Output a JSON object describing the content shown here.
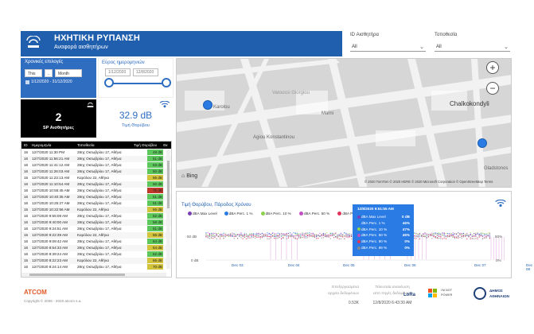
{
  "header": {
    "title": "ΗΧΗΤΙΚΗ ΡΥΠΑΝΣΗ",
    "subtitle": "Αναφορά αισθητήρων",
    "sensor_filter_label": "ID Αισθητήρα",
    "sensor_filter_value": "All",
    "location_filter_label": "Τοποθεσία",
    "location_filter_value": "All"
  },
  "time_filter": {
    "label": "Χρονικές επιλογές",
    "sel1": "This",
    "sel2": "..",
    "sel3": "Month",
    "range_text": "1/12/2020 - 31/12/2020"
  },
  "date_range": {
    "label": "Εύρος ημερομηνιών",
    "start": "1/12/2020",
    "end": "12/8/2020"
  },
  "kpi": {
    "sensors_value": "2",
    "sensors_label": "SP Αισθητήρες",
    "noise_value": "32.9 dB",
    "noise_label": "Τιμή Θορύβου"
  },
  "table": {
    "headers": [
      "ID",
      "Ημερομηνία",
      "Τοποθεσία",
      "Τιμή Θορύβου",
      "Θε"
    ],
    "rows": [
      {
        "id": "16",
        "date": "12/7/2020 11:30 PM",
        "loc": "28ης Οκτωβρίου 17, Αθήνα",
        "val": "48 dB",
        "color": "#5cc85c"
      },
      {
        "id": "16",
        "date": "12/7/2020 11:56:21 AM",
        "loc": "28ης Οκτωβρίου 17, Αθήνα",
        "val": "51 dB",
        "color": "#5cc85c"
      },
      {
        "id": "16",
        "date": "12/7/2020 11:41:12 AM",
        "loc": "28ης Οκτωβρίου 17, Αθήνα",
        "val": "53 dB",
        "color": "#5cc85c"
      },
      {
        "id": "16",
        "date": "12/7/2020 11:26:03 AM",
        "loc": "28ης Οκτωβρίου 17, Αθήνα",
        "val": "50 dB",
        "color": "#5cc85c"
      },
      {
        "id": "15",
        "date": "12/7/2020 11:23:13 AM",
        "loc": "Καρόλου 22, Αθήνα",
        "val": "66 dB",
        "color": "#d2c33a"
      },
      {
        "id": "16",
        "date": "12/7/2020 11:10:54 AM",
        "loc": "28ης Οκτωβρίου 17, Αθήνα",
        "val": "50 dB",
        "color": "#5cc85c"
      },
      {
        "id": "16",
        "date": "12/7/2020 10:55:45 AM",
        "loc": "28ης Οκτωβρίου 17, Αθήνα",
        "val": "75 dB",
        "color": "#c0392b"
      },
      {
        "id": "16",
        "date": "12/7/2020 10:40:35 AM",
        "loc": "28ης Οκτωβρίου 17, Αθήνα",
        "val": "61 dB",
        "color": "#5cc85c"
      },
      {
        "id": "16",
        "date": "12/7/2020 10:25:27 AM",
        "loc": "28ης Οκτωβρίου 17, Αθήνα",
        "val": "51 dB",
        "color": "#5cc85c"
      },
      {
        "id": "15",
        "date": "12/7/2020 10:22:56 AM",
        "loc": "Καρόλου 22, Αθήνα",
        "val": "66 dB",
        "color": "#d2c33a"
      },
      {
        "id": "16",
        "date": "12/7/2020 9:55:09 AM",
        "loc": "28ης Οκτωβρίου 17, Αθήνα",
        "val": "52 dB",
        "color": "#5cc85c"
      },
      {
        "id": "16",
        "date": "12/7/2020 9:40:00 AM",
        "loc": "28ης Οκτωβρίου 17, Αθήνα",
        "val": "58 dB",
        "color": "#5cc85c"
      },
      {
        "id": "16",
        "date": "12/7/2020 9:24:51 AM",
        "loc": "28ης Οκτωβρίου 17, Αθήνα",
        "val": "51 dB",
        "color": "#5cc85c"
      },
      {
        "id": "15",
        "date": "12/7/2020 9:22:39 AM",
        "loc": "Καρόλου 22, Αθήνα",
        "val": "66 dB",
        "color": "#d2c33a"
      },
      {
        "id": "16",
        "date": "12/7/2020 9:09:42 AM",
        "loc": "28ης Οκτωβρίου 17, Αθήνα",
        "val": "64 dB",
        "color": "#5cc85c"
      },
      {
        "id": "16",
        "date": "12/7/2020 8:54:33 AM",
        "loc": "28ης Οκτωβρίου 17, Αθήνα",
        "val": "64 dB",
        "color": "#d2c33a"
      },
      {
        "id": "16",
        "date": "12/7/2020 8:39:24 AM",
        "loc": "28ης Οκτωβρίου 17, Αθήνα",
        "val": "62 dB",
        "color": "#5cc85c"
      },
      {
        "id": "15",
        "date": "12/7/2020 8:22:23 AM",
        "loc": "Καρόλου 22, Αθήνα",
        "val": "66 dB",
        "color": "#d2c33a"
      },
      {
        "id": "16",
        "date": "12/7/2020 8:24:14 AM",
        "loc": "28ης Οκτωβρίου 17, Αθήνα",
        "val": "70 dB",
        "color": "#d2c33a"
      }
    ]
  },
  "map": {
    "streets": [
      "Karolou",
      "Vatoussi Giorgiou",
      "Chalkokondyli",
      "Agiou Konstantinou",
      "Marni",
      "Gladstonos"
    ],
    "attribution": "© 2020 TomTom © 2020 HERE © 2020 Microsoft Corporation © OpenStreetMap Terms",
    "brand": "Bing",
    "zoom_in": "+",
    "zoom_out": "−"
  },
  "chart": {
    "title": "Τιμή Θορύβου, Πάροδος Χρόνου",
    "legend": [
      {
        "name": "dBA Max Level",
        "color": "#7b3fb5"
      },
      {
        "name": "dBA Perc. 1 %",
        "color": "#2a7be4"
      },
      {
        "name": "dBA Perc. 10 %",
        "color": "#8fd14f"
      },
      {
        "name": "dBA Perc. 50 %",
        "color": "#c24fc2"
      },
      {
        "name": "dBA Perc. 90 %",
        "color": "#e0345a"
      },
      {
        "name": "dB...",
        "color": "#888888"
      }
    ],
    "y_left": [
      "50 dB",
      "0 dB"
    ],
    "y_right": [
      "50%",
      "0%"
    ],
    "x_ticks": [
      "Dec 03",
      "Dec 04",
      "Dec 05",
      "Dec 06",
      "Dec 07",
      "Dec 08"
    ],
    "tooltip": {
      "title": "12/8/2020 9:51:55 AM",
      "rows": [
        {
          "k": "dBA Max Level",
          "v": "0 dB",
          "color": "#7b3fb5"
        },
        {
          "k": "dBA Perc. 1 %",
          "v": "46%",
          "color": "#2a7be4"
        },
        {
          "k": "dBA Perc. 10 %",
          "v": "47%",
          "color": "#8fd14f"
        },
        {
          "k": "dBA Perc. 50 %",
          "v": "46%",
          "color": "#c24fc2"
        },
        {
          "k": "dBA Perc. 90 %",
          "v": "0%",
          "color": "#e0345a"
        },
        {
          "k": "dBA Perc. 99 %",
          "v": "0%",
          "color": "#888888"
        }
      ]
    }
  },
  "chart_data": {
    "type": "scatter",
    "x_ticks": [
      "Dec 03",
      "Dec 04",
      "Dec 05",
      "Dec 06",
      "Dec 07",
      "Dec 08"
    ],
    "y_left_ticks": [
      "50 dB",
      "0 dB"
    ],
    "y_right_ticks": [
      "50%",
      "0%"
    ],
    "series": [
      {
        "name": "dBA Max Level",
        "values": [
          50,
          50,
          50,
          50,
          50,
          0
        ]
      },
      {
        "name": "dBA Perc. 1 %",
        "values": [
          46,
          46,
          46,
          46,
          46,
          46
        ]
      },
      {
        "name": "dBA Perc. 10 %",
        "values": [
          47,
          47,
          47,
          47,
          47,
          47
        ]
      },
      {
        "name": "dBA Perc. 50 %",
        "values": [
          46,
          46,
          46,
          46,
          46,
          46
        ]
      },
      {
        "name": "dBA Perc. 90 %",
        "values": [
          0,
          0,
          0,
          0,
          0,
          0
        ]
      }
    ]
  },
  "footer": {
    "brand": "ATCOM",
    "copyright": "Copyright © 2006 - 2020 atcom s.a.",
    "col1_label": "Επεξεργασμένα",
    "col1_label2": "αρχεία δεδομένων",
    "col1_value": "0.53K",
    "col2_label": "Τελευταία ανανέωση",
    "col2_label2": "από πηγές δεδομένων",
    "col2_value": "12/8/2020 6:43:30 AM",
    "lora": "LoRa",
    "ms_text": "I'M NOT",
    "ms_text2": "POWER",
    "city": "ΔΗΜΟΣ",
    "city2": "ΑΘΗΝΑΙΩΝ"
  }
}
